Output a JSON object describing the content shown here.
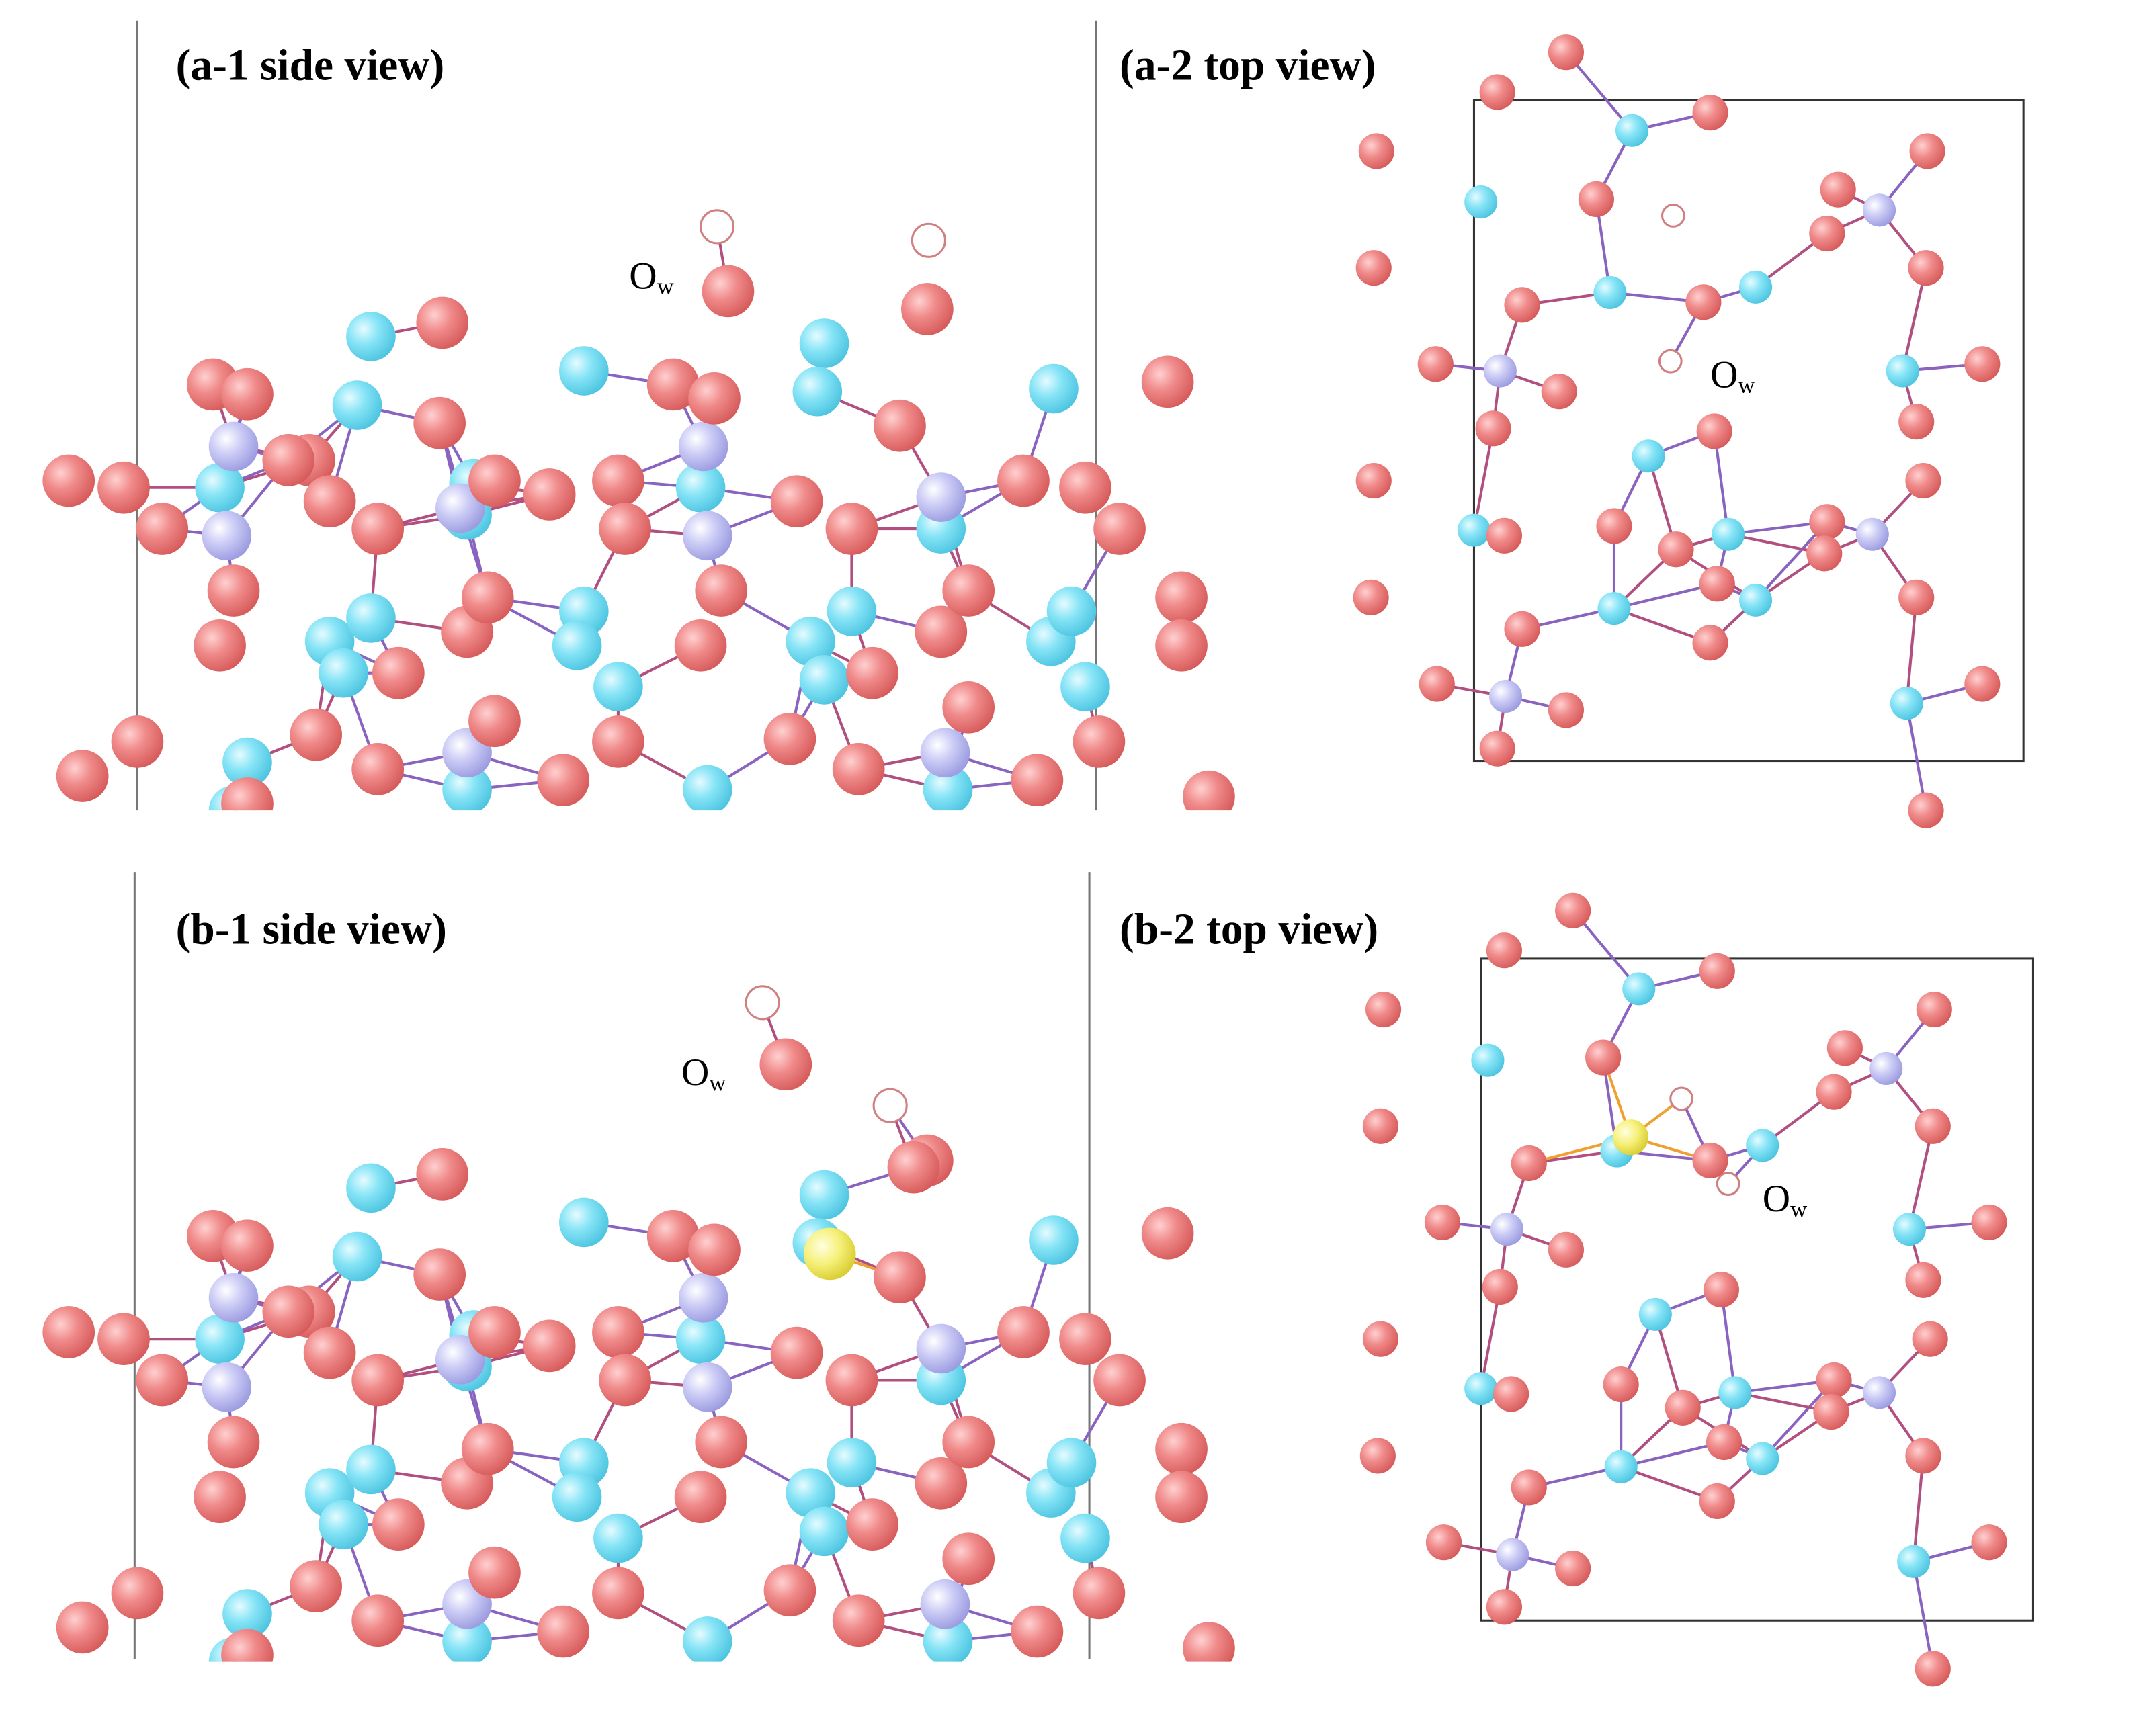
{
  "panels": [
    {
      "title": "(a-1 side view)",
      "annotation": {
        "text": "O",
        "subscript": "w"
      }
    },
    {
      "title": "(a-2 top view)",
      "annotation": {
        "text": "O",
        "subscript": "w"
      }
    },
    {
      "title": "(b-1 side view)",
      "annotation": {
        "text": "O",
        "subscript": "w"
      }
    },
    {
      "title": "(b-2 top view)",
      "annotation": {
        "text": "O",
        "subscript": "w"
      }
    }
  ]
}
